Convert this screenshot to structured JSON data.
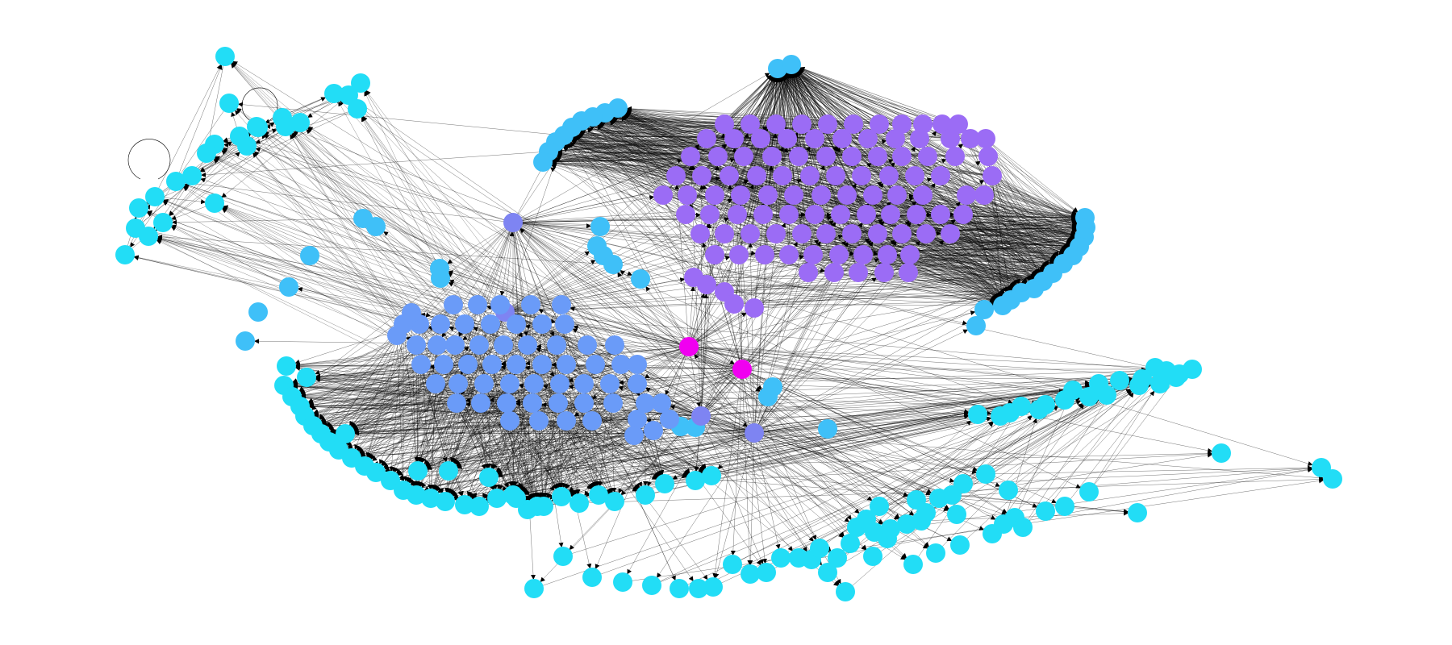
{
  "diagram": {
    "type": "directed-network-graph",
    "labels_shown": false,
    "background_color": "#ffffff",
    "edge_color": "#000000",
    "node_colors": {
      "cyan": "#22DDF6",
      "sky": "#3FC0F8",
      "blue": "#6A9BF8",
      "periwinkle": "#7E84F2",
      "violet": "#9B6CF5",
      "magenta": "#F000F0"
    },
    "node_groups": [
      {
        "name": "left-top-cluster",
        "color": "cyan"
      },
      {
        "name": "top-left-arc",
        "color": "sky"
      },
      {
        "name": "top-pair",
        "color": "sky"
      },
      {
        "name": "violet-cluster",
        "color": "violet"
      },
      {
        "name": "right-arc",
        "color": "sky"
      },
      {
        "name": "hubs",
        "color": "periwinkle"
      },
      {
        "name": "blue-cluster",
        "color": "blue"
      },
      {
        "name": "bottom-arc",
        "color": "cyan"
      },
      {
        "name": "bottom-scatter",
        "color": "cyan"
      },
      {
        "name": "right-scatter",
        "color": "cyan"
      },
      {
        "name": "central-hubs",
        "color": "magenta"
      }
    ]
  }
}
